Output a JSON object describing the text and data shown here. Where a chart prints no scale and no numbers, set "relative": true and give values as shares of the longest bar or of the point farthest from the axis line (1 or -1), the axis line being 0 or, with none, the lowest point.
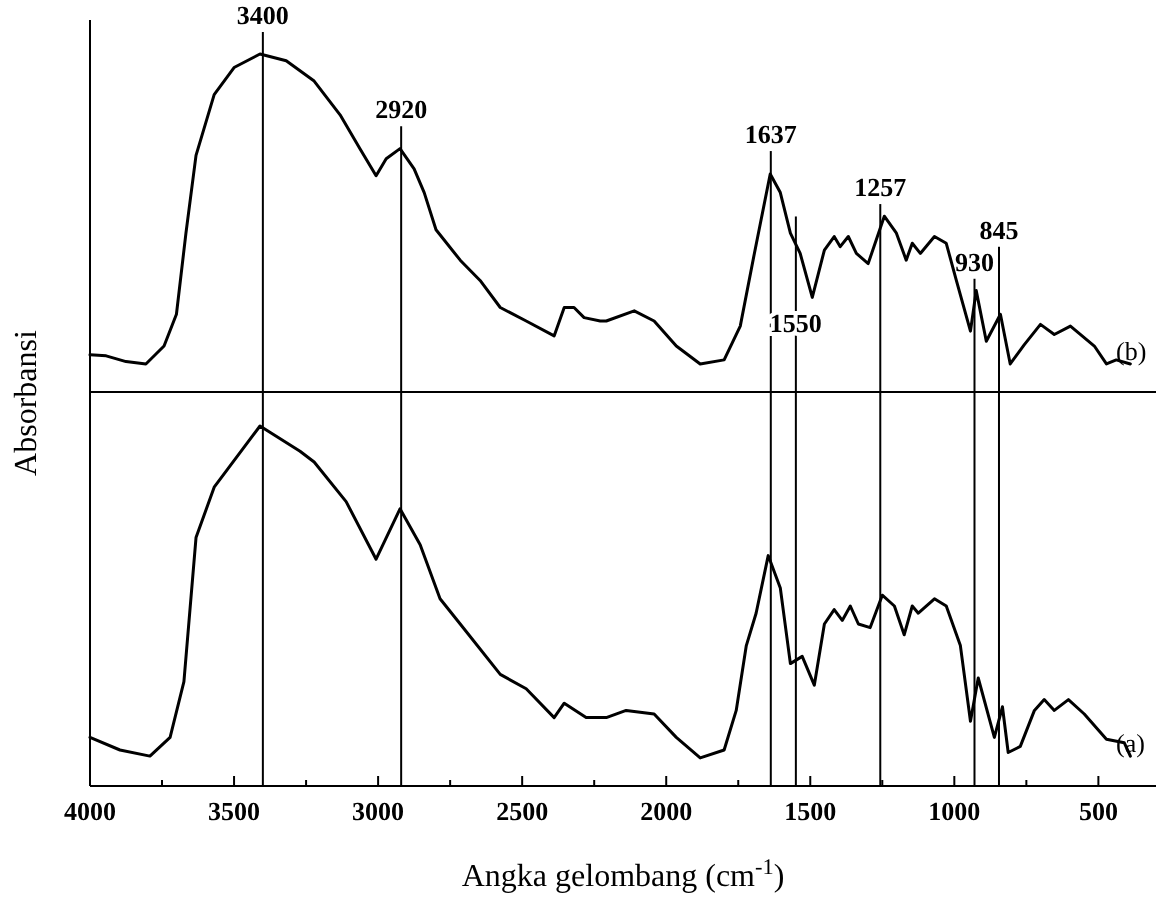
{
  "chart_data": [
    {
      "type": "line",
      "relative": true,
      "xlim": [
        4000,
        300
      ],
      "legend": false,
      "ref_lines": [
        {
          "axis": "x",
          "value": 3400,
          "label": "3400"
        },
        {
          "axis": "x",
          "value": 2920,
          "label": "2920"
        },
        {
          "axis": "x",
          "value": 1637,
          "label": "1637"
        },
        {
          "axis": "x",
          "value": 1550,
          "label": "1550"
        },
        {
          "axis": "x",
          "value": 1257,
          "label": "1257"
        },
        {
          "axis": "x",
          "value": 930,
          "label": "930"
        },
        {
          "axis": "x",
          "value": 845,
          "label": "845"
        }
      ],
      "series": [
        {
          "name": "(b)",
          "color": "#000000",
          "x": [
            4000,
            3944,
            3875,
            3806,
            3743,
            3700,
            3667,
            3632,
            3569,
            3500,
            3410,
            3319,
            3222,
            3132,
            3063,
            3007,
            2972,
            2924,
            2875,
            2840,
            2799,
            2715,
            2646,
            2576,
            2486,
            2389,
            2354,
            2320,
            2285,
            2229,
            2208,
            2111,
            2042,
            1965,
            1882,
            1799,
            1743,
            1694,
            1639,
            1604,
            1569,
            1535,
            1493,
            1451,
            1417,
            1396,
            1368,
            1340,
            1299,
            1243,
            1201,
            1167,
            1146,
            1118,
            1069,
            1028,
            993,
            944,
            924,
            889,
            840,
            806,
            757,
            701,
            653,
            597,
            514,
            472,
            438,
            389
          ],
          "values": [
            0.11,
            0.107,
            0.09,
            0.083,
            0.136,
            0.23,
            0.47,
            0.7,
            0.88,
            0.96,
            1,
            0.98,
            0.92,
            0.82,
            0.72,
            0.64,
            0.69,
            0.72,
            0.66,
            0.59,
            0.48,
            0.39,
            0.33,
            0.25,
            0.21,
            0.166,
            0.25,
            0.25,
            0.22,
            0.21,
            0.21,
            0.24,
            0.21,
            0.136,
            0.083,
            0.095,
            0.195,
            0.41,
            0.645,
            0.59,
            0.47,
            0.41,
            0.28,
            0.42,
            0.46,
            0.43,
            0.46,
            0.41,
            0.38,
            0.52,
            0.47,
            0.39,
            0.44,
            0.41,
            0.46,
            0.44,
            0.33,
            0.18,
            0.3,
            0.15,
            0.23,
            0.083,
            0.14,
            0.2,
            0.17,
            0.195,
            0.136,
            0.083,
            0.095,
            0.083
          ]
        }
      ]
    },
    {
      "type": "line",
      "relative": true,
      "xlim": [
        4000,
        300
      ],
      "legend": false,
      "xlabel": "Angka gelombang (cm$^{-1}$)",
      "ylabel": "Absorbansi",
      "xticks": [
        4000,
        {
          "value": 3750,
          "label": null
        },
        3500,
        {
          "value": 3250,
          "label": null
        },
        3000,
        {
          "value": 2750,
          "label": null
        },
        2500,
        {
          "value": 2250,
          "label": null
        },
        2000,
        {
          "value": 1750,
          "label": null
        },
        1500,
        {
          "value": 1250,
          "label": null
        },
        1000,
        {
          "value": 750,
          "label": null
        },
        500
      ],
      "ref_lines": [
        {
          "axis": "x",
          "value": 3400
        },
        {
          "axis": "x",
          "value": 2920
        },
        {
          "axis": "x",
          "value": 1637
        },
        {
          "axis": "x",
          "value": 1550
        },
        {
          "axis": "x",
          "value": 1257
        },
        {
          "axis": "x",
          "value": 930
        },
        {
          "axis": "x",
          "value": 845
        }
      ],
      "series": [
        {
          "name": "(a)",
          "color": "#000000",
          "x": [
            4000,
            3896,
            3792,
            3722,
            3674,
            3632,
            3569,
            3410,
            3271,
            3222,
            3111,
            3007,
            2924,
            2854,
            2785,
            2715,
            2576,
            2486,
            2389,
            2354,
            2278,
            2208,
            2139,
            2042,
            1965,
            1882,
            1799,
            1757,
            1722,
            1688,
            1646,
            1604,
            1569,
            1528,
            1486,
            1451,
            1417,
            1389,
            1361,
            1333,
            1292,
            1250,
            1208,
            1174,
            1146,
            1125,
            1069,
            1028,
            979,
            944,
            917,
            861,
            833,
            813,
            771,
            722,
            688,
            653,
            604,
            549,
            472,
            410,
            389
          ],
          "values": [
            0.135,
            0.1,
            0.083,
            0.135,
            0.29,
            0.69,
            0.83,
            1,
            0.93,
            0.9,
            0.79,
            0.63,
            0.77,
            0.67,
            0.52,
            0.45,
            0.31,
            0.27,
            0.19,
            0.23,
            0.19,
            0.19,
            0.21,
            0.2,
            0.135,
            0.078,
            0.1,
            0.21,
            0.39,
            0.48,
            0.64,
            0.55,
            0.34,
            0.36,
            0.28,
            0.45,
            0.49,
            0.46,
            0.5,
            0.45,
            0.44,
            0.53,
            0.5,
            0.42,
            0.5,
            0.48,
            0.52,
            0.5,
            0.39,
            0.18,
            0.3,
            0.135,
            0.22,
            0.093,
            0.11,
            0.21,
            0.24,
            0.21,
            0.24,
            0.2,
            0.13,
            0.12,
            0.083
          ]
        }
      ]
    }
  ]
}
